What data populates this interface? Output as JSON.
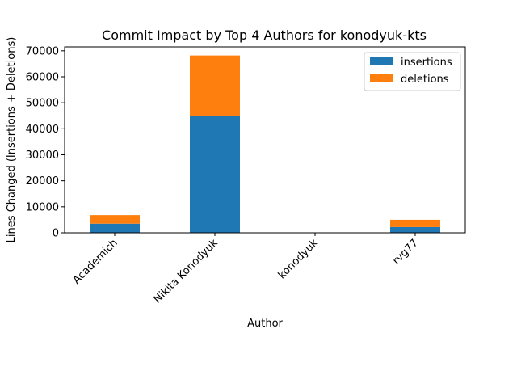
{
  "chart_data": {
    "type": "bar",
    "stacked": true,
    "title": "Commit Impact by Top 4 Authors for konodyuk-kts",
    "xlabel": "Author",
    "ylabel": "Lines Changed (Insertions + Deletions)",
    "categories": [
      "Academich",
      "Nikita Konodyuk",
      "konodyuk",
      "rvg77"
    ],
    "series": [
      {
        "name": "insertions",
        "values": [
          3500,
          45000,
          0,
          2200
        ],
        "color": "#1f77b4"
      },
      {
        "name": "deletions",
        "values": [
          3300,
          23200,
          0,
          2800
        ],
        "color": "#ff7f0e"
      }
    ],
    "ylim": [
      0,
      71500
    ],
    "yticks": [
      0,
      10000,
      20000,
      30000,
      40000,
      50000,
      60000,
      70000
    ],
    "ytick_labels": [
      "0",
      "10000",
      "20000",
      "30000",
      "40000",
      "50000",
      "60000",
      "70000"
    ],
    "legend_position": "top-right",
    "grid": false
  }
}
